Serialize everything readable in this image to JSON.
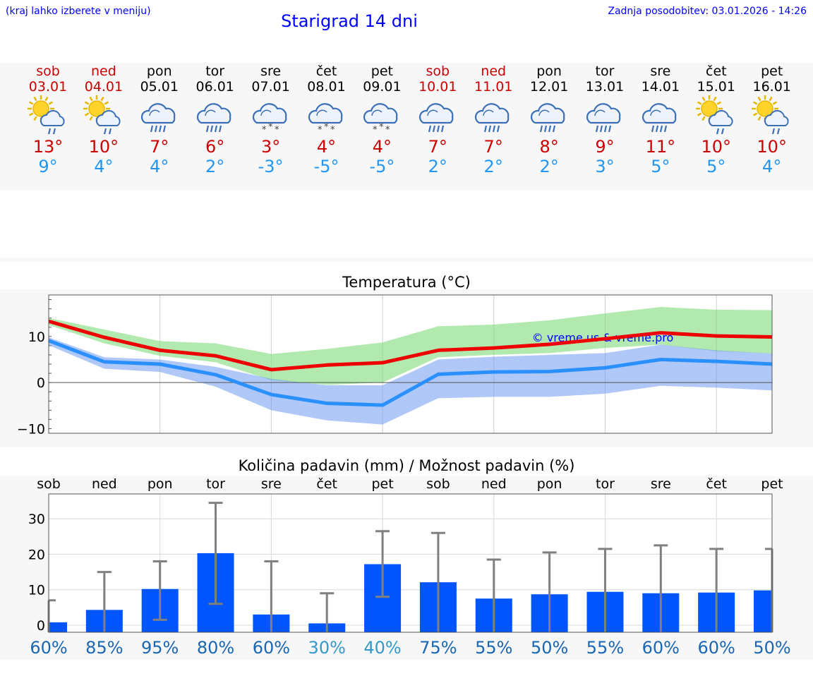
{
  "header": {
    "note": "(kraj lahko izberete v meniju)",
    "title": "Starigrad 14 dni",
    "updated": "Zadnja posodobitev: 03.01.2026 - 14:26"
  },
  "days": [
    {
      "name": "sob",
      "date": "03.01",
      "weekend": true,
      "icon": "sun-cloud-rain-icon",
      "kind": "sun-rain",
      "tmax": "13°",
      "tmin": "9°"
    },
    {
      "name": "ned",
      "date": "04.01",
      "weekend": true,
      "icon": "sun-cloud-rain-icon",
      "kind": "sun-rain",
      "tmax": "10°",
      "tmin": "4°"
    },
    {
      "name": "pon",
      "date": "05.01",
      "weekend": false,
      "icon": "cloud-rain-icon",
      "kind": "rain",
      "tmax": "7°",
      "tmin": "4°"
    },
    {
      "name": "tor",
      "date": "06.01",
      "weekend": false,
      "icon": "cloud-rain-icon",
      "kind": "rain",
      "tmax": "6°",
      "tmin": "2°"
    },
    {
      "name": "sre",
      "date": "07.01",
      "weekend": false,
      "icon": "cloud-snow-icon",
      "kind": "snow",
      "tmax": "3°",
      "tmin": "-3°"
    },
    {
      "name": "čet",
      "date": "08.01",
      "weekend": false,
      "icon": "cloud-snow-icon",
      "kind": "snow",
      "tmax": "4°",
      "tmin": "-5°"
    },
    {
      "name": "pet",
      "date": "09.01",
      "weekend": false,
      "icon": "cloud-snow-icon",
      "kind": "snow",
      "tmax": "4°",
      "tmin": "-5°"
    },
    {
      "name": "sob",
      "date": "10.01",
      "weekend": true,
      "icon": "cloud-rain-icon",
      "kind": "rain",
      "tmax": "7°",
      "tmin": "2°"
    },
    {
      "name": "ned",
      "date": "11.01",
      "weekend": true,
      "icon": "cloud-rain-icon",
      "kind": "rain",
      "tmax": "7°",
      "tmin": "2°"
    },
    {
      "name": "pon",
      "date": "12.01",
      "weekend": false,
      "icon": "cloud-rain-icon",
      "kind": "rain",
      "tmax": "8°",
      "tmin": "2°"
    },
    {
      "name": "tor",
      "date": "13.01",
      "weekend": false,
      "icon": "cloud-rain-icon",
      "kind": "rain",
      "tmax": "9°",
      "tmin": "3°"
    },
    {
      "name": "sre",
      "date": "14.01",
      "weekend": false,
      "icon": "cloud-rain-icon",
      "kind": "rain",
      "tmax": "11°",
      "tmin": "5°"
    },
    {
      "name": "čet",
      "date": "15.01",
      "weekend": false,
      "icon": "sun-cloud-rain-icon",
      "kind": "sun-rain",
      "tmax": "10°",
      "tmin": "5°"
    },
    {
      "name": "pet",
      "date": "16.01",
      "weekend": false,
      "icon": "sun-cloud-rain-icon",
      "kind": "sun-rain",
      "tmax": "10°",
      "tmin": "4°"
    }
  ],
  "colors": {
    "weekend": "#cc0000",
    "weekday": "#000000",
    "tmax": "#cc0000",
    "tmin": "#2196f3",
    "bar": "#0055ff",
    "prob_high": "#1a66b3",
    "prob_low": "#3399cc"
  },
  "chart_data": [
    {
      "type": "line",
      "title": "Temperatura (°C)",
      "watermark": "© vreme.us & vreme.pro",
      "x": [
        0,
        1,
        2,
        3,
        4,
        5,
        6,
        7,
        8,
        9,
        10,
        11,
        12,
        13
      ],
      "ylim": [
        -11,
        19
      ],
      "yticks": [
        -10,
        0,
        10
      ],
      "series": [
        {
          "name": "max",
          "color": "#ee0000",
          "values": [
            13.3,
            9.8,
            7.0,
            5.8,
            2.8,
            3.8,
            4.3,
            7.0,
            7.5,
            8.3,
            9.5,
            10.8,
            10.1,
            9.9
          ]
        },
        {
          "name": "min",
          "color": "#2b90ff",
          "values": [
            9.1,
            4.5,
            4.0,
            1.7,
            -2.6,
            -4.5,
            -4.9,
            1.8,
            2.3,
            2.4,
            3.2,
            5.0,
            4.6,
            4.0
          ]
        }
      ],
      "max_band": {
        "upper": [
          14,
          11.5,
          9,
          8.5,
          6.2,
          7.3,
          8.7,
          12.2,
          12.6,
          13.5,
          15,
          16.4,
          15.8,
          15.7
        ],
        "lower": [
          12.5,
          8.5,
          5.8,
          4.4,
          0.5,
          -0.5,
          0.0,
          5.5,
          6.0,
          6.4,
          7.5,
          8.2,
          6.8,
          6.3
        ]
      },
      "min_band": {
        "upper": [
          9.8,
          5.5,
          5.0,
          3.4,
          0.8,
          -0.6,
          -0.6,
          5.0,
          5.6,
          6.0,
          6.4,
          8.2,
          7.0,
          6.3
        ],
        "lower": [
          8.1,
          3.0,
          2.3,
          -0.9,
          -6.0,
          -8.2,
          -9.1,
          -3.4,
          -3.1,
          -3.1,
          -2.4,
          -0.7,
          -1.1,
          -1.7
        ]
      }
    },
    {
      "type": "bar",
      "title": "Količina padavin (mm) / Možnost padavin (%)",
      "categories": [
        "sob",
        "ned",
        "pon",
        "tor",
        "sre",
        "čet",
        "pet",
        "sob",
        "ned",
        "pon",
        "tor",
        "sre",
        "čet",
        "pet"
      ],
      "values": [
        0.8,
        4.3,
        10.2,
        20.3,
        3.0,
        0.5,
        17.2,
        12.1,
        7.5,
        8.7,
        9.4,
        9.0,
        9.2,
        9.8
      ],
      "error_high": [
        7,
        15,
        18,
        34.5,
        18,
        9,
        26.5,
        26,
        18.5,
        20.5,
        21.5,
        22.5,
        21.5,
        21.5
      ],
      "error_low": [
        0,
        0,
        1.5,
        6,
        0,
        0,
        8,
        0,
        0,
        0,
        0,
        0,
        0,
        0
      ],
      "probability": [
        "60%",
        "85%",
        "95%",
        "80%",
        "60%",
        "30%",
        "40%",
        "75%",
        "55%",
        "50%",
        "55%",
        "60%",
        "60%",
        "50%"
      ],
      "ylim": [
        -2,
        37
      ],
      "yticks": [
        0,
        10,
        20,
        30
      ]
    }
  ]
}
